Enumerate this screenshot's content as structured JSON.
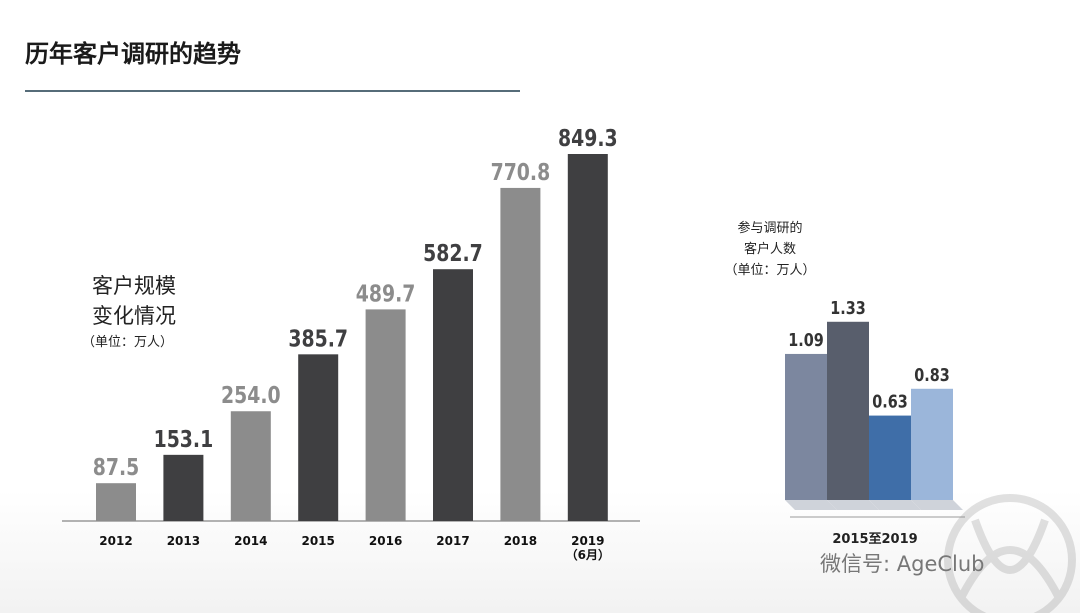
{
  "title": "历年客户调研的趋势",
  "chart_data": [
    {
      "type": "bar",
      "annotation": [
        "客户规模",
        "变化情况",
        "（单位：万人）"
      ],
      "categories": [
        "2012",
        "2013",
        "2014",
        "2015",
        "2016",
        "2017",
        "2018",
        "2019\n（6月）"
      ],
      "values": [
        87.5,
        153.1,
        254.0,
        385.7,
        489.7,
        582.7,
        770.8,
        849.3
      ],
      "value_labels": [
        "87.5",
        "153.1",
        "254.0",
        "385.7",
        "489.7",
        "582.7",
        "770.8",
        "849.3"
      ],
      "colors": [
        "#8c8c8c",
        "#3f3f41",
        "#8c8c8c",
        "#3f3f41",
        "#8c8c8c",
        "#3f3f41",
        "#8c8c8c",
        "#3f3f41"
      ]
    },
    {
      "type": "bar3d",
      "title": "参与调研的\n客户人数\n（单位：万人）",
      "x_label": "2015至2019",
      "values": [
        1.09,
        1.33,
        0.63,
        0.83
      ],
      "colors": [
        "#7c879f",
        "#585e6c",
        "#3f6ea8",
        "#9bb6da"
      ]
    }
  ],
  "watermark": "微信号: AgeClub"
}
